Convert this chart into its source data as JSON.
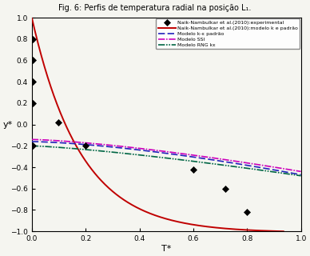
{
  "title": "Fig. 6: Perfis de temperatura radial na posição L₁.",
  "xlabel": "T*",
  "ylabel": "y*",
  "xlim": [
    0.0,
    1.0
  ],
  "ylim": [
    -1.0,
    1.0
  ],
  "xticks": [
    0.0,
    0.2,
    0.4,
    0.6,
    0.8,
    1.0
  ],
  "ytick_vals": [
    -1.0,
    -0.8,
    -0.6,
    -0.4,
    -0.2,
    0.0,
    0.2,
    0.4,
    0.6,
    0.8,
    1.0
  ],
  "exp_x": [
    0.005,
    0.005,
    0.005,
    0.005,
    0.005,
    0.1,
    0.2,
    0.6,
    0.72,
    0.8
  ],
  "exp_y": [
    0.8,
    0.6,
    0.4,
    0.2,
    -0.2,
    0.02,
    -0.2,
    -0.42,
    -0.6,
    -0.82
  ],
  "legend_labels": [
    "Naik-Nambulkar et al.(2010):experimental",
    "Naik-Nambulkar et al.(2010):modelo k e padrão",
    "Modelo k-ε padrão",
    "Modelo SSI",
    "Modelo RNG kε"
  ],
  "red_line_color": "#c00000",
  "blue_dash_color": "#2222bb",
  "magenta_dashdot_color": "#cc00bb",
  "green_dashdot_color": "#006644",
  "background_color": "#f5f5f0"
}
